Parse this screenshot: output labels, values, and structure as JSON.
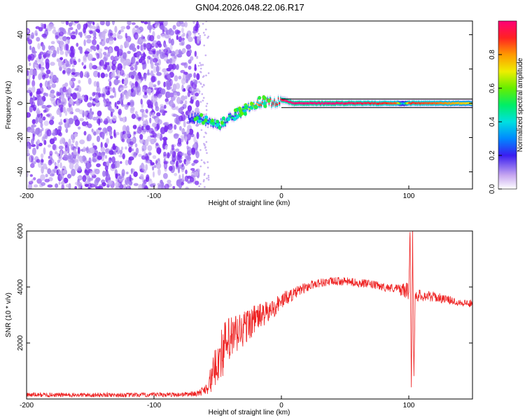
{
  "figure_title": "GN04.2026.048.22.06.R17",
  "colors": {
    "snr_line": "#ee2222",
    "axis": "#000000",
    "noise_purple": "#7a2cf0",
    "noise_light": "#c9b2f2",
    "ref_line": "#000000"
  },
  "chart_data": [
    {
      "type": "heatmap",
      "name": "spectrogram",
      "title": "",
      "xlabel": "Height of straight line (km)",
      "ylabel": "Frequency (Hz)",
      "xlim": [
        -200,
        150
      ],
      "ylim": [
        -50,
        48
      ],
      "xticks": [
        -200,
        -100,
        0,
        100
      ],
      "xtick_labels": [
        "-200",
        "-100",
        "0",
        "100"
      ],
      "yticks": [
        -40,
        -20,
        0,
        20,
        40
      ],
      "ytick_labels": [
        "-40",
        "-20",
        "0",
        "20",
        "40"
      ],
      "reference_lines_hz": [
        -2.5,
        2.5
      ],
      "noise_region_km": [
        -200,
        -65
      ],
      "signal_track": {
        "x": [
          -73,
          -65,
          -60,
          -55,
          -50,
          -45,
          -40,
          -35,
          -30,
          -25,
          -20,
          -15,
          -10,
          -5,
          0,
          5,
          10,
          20,
          40,
          60,
          80,
          90,
          95,
          100,
          120,
          150
        ],
        "freq": [
          -8,
          -9,
          -10,
          -11,
          -13,
          -11,
          -8,
          -6,
          -5,
          -2,
          0,
          1,
          1,
          0,
          2,
          1,
          0,
          0,
          0,
          0,
          0,
          0,
          0,
          0,
          0,
          0
        ],
        "amplitude": [
          0.2,
          0.3,
          0.35,
          0.4,
          0.4,
          0.45,
          0.5,
          0.5,
          0.55,
          0.65,
          0.8,
          0.9,
          0.95,
          0.9,
          0.95,
          1.0,
          1.0,
          1.0,
          1.0,
          0.95,
          0.9,
          0.85,
          0.3,
          0.9,
          0.85,
          0.7
        ]
      },
      "colorbar": {
        "label": "Normalized spectral amplitude",
        "range": [
          0.0,
          1.0
        ],
        "ticks": [
          0.0,
          0.2,
          0.4,
          0.6,
          0.8
        ],
        "tick_labels": [
          "0.0",
          "0.2",
          "0.4",
          "0.6",
          "0.8"
        ]
      }
    },
    {
      "type": "line",
      "name": "snr",
      "title": "",
      "xlabel": "Height of straight line (km)",
      "ylabel": "SNR (10 * v/v)",
      "xlim": [
        -200,
        150
      ],
      "ylim": [
        0,
        6000
      ],
      "xticks": [
        -200,
        -100,
        0,
        100
      ],
      "xtick_labels": [
        "-200",
        "-100",
        "0",
        "100"
      ],
      "yticks": [
        2000,
        4000,
        6000
      ],
      "ytick_labels": [
        "2000",
        "4000",
        "6000"
      ],
      "series": [
        {
          "name": "SNR",
          "x": [
            -200,
            -180,
            -160,
            -140,
            -120,
            -100,
            -80,
            -65,
            -60,
            -55,
            -50,
            -45,
            -40,
            -35,
            -30,
            -25,
            -20,
            -15,
            -10,
            -5,
            0,
            5,
            10,
            15,
            20,
            25,
            30,
            40,
            50,
            60,
            70,
            80,
            90,
            95,
            100,
            101,
            102,
            103,
            104,
            105,
            110,
            120,
            130,
            140,
            150
          ],
          "y": [
            150,
            150,
            140,
            150,
            140,
            150,
            160,
            200,
            350,
            700,
            1400,
            1800,
            2100,
            2300,
            2500,
            2700,
            2900,
            3000,
            3100,
            3300,
            3500,
            3650,
            3750,
            3900,
            4000,
            4100,
            4150,
            4200,
            4200,
            4150,
            4100,
            4000,
            3950,
            3900,
            3850,
            6000,
            400,
            5900,
            600,
            3700,
            3700,
            3650,
            3550,
            3450,
            3400
          ],
          "envelope_half_width": [
            80,
            80,
            80,
            80,
            80,
            80,
            80,
            100,
            200,
            500,
            800,
            1000,
            900,
            800,
            700,
            600,
            500,
            450,
            400,
            350,
            300,
            260,
            220,
            200,
            180,
            170,
            160,
            150,
            150,
            150,
            150,
            150,
            150,
            250,
            300,
            0,
            0,
            0,
            0,
            250,
            200,
            180,
            150,
            140,
            140
          ]
        }
      ]
    }
  ]
}
